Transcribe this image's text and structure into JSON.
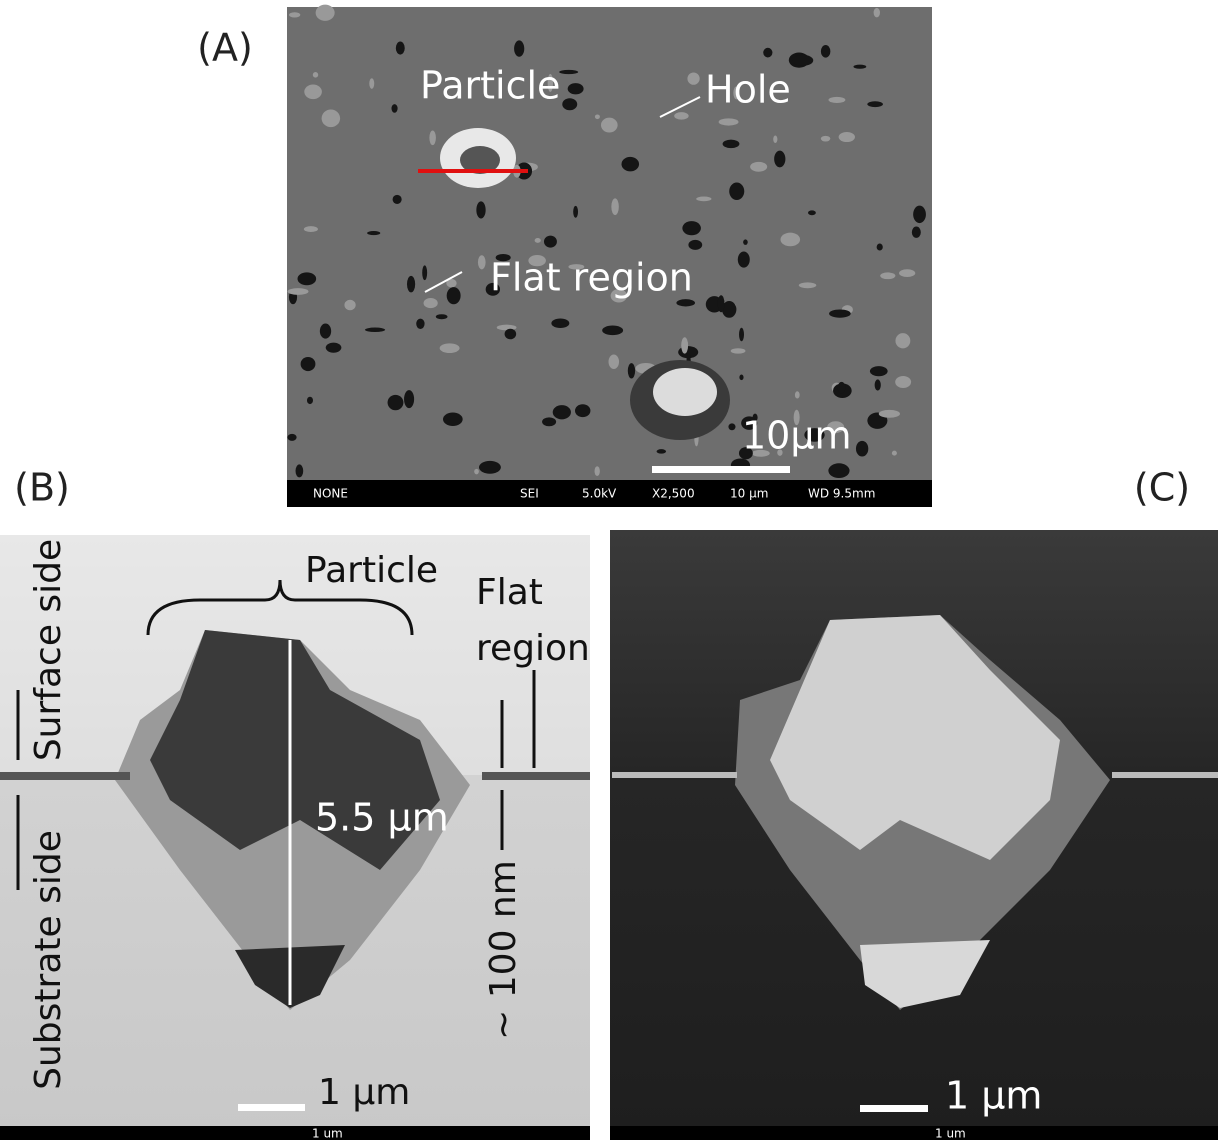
{
  "panel_a": {
    "label": "(A)",
    "particle": "Particle",
    "hole": "Hole",
    "flat_region": "Flat region",
    "scale_bar": "10μm",
    "info_bar": [
      "NONE",
      "SEI",
      "5.0kV",
      "X2,500",
      "10 μm",
      "WD 9.5mm"
    ]
  },
  "panel_b": {
    "label": "(B)",
    "surface_side": "Surface side",
    "substrate_side": "Substrate side",
    "particle": "Particle",
    "flat_region": [
      "Flat",
      "region"
    ],
    "depth": "5.5 μm",
    "thickness": "~ 100 nm",
    "scale_bar": "1 μm",
    "info_scale": "1 um"
  },
  "panel_c": {
    "label": "(C)",
    "scale_bar": "1 μm",
    "info_scale": "1 um"
  }
}
